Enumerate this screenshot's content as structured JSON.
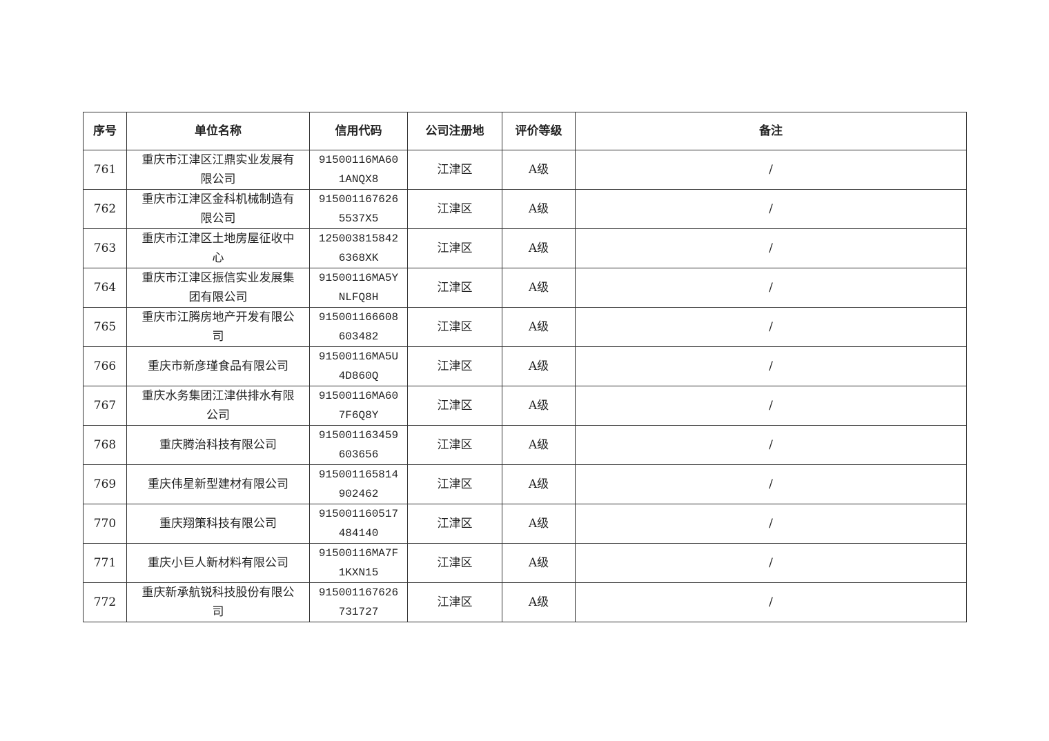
{
  "headers": [
    "序号",
    "单位名称",
    "信用代码",
    "公司注册地",
    "评价等级",
    "备注"
  ],
  "rows": [
    {
      "no": "761",
      "name": "重庆市江津区江鼎实业发展有限公司",
      "code": "91500116MA601ANQX8",
      "region": "江津区",
      "grade": "A级",
      "note": "/"
    },
    {
      "no": "762",
      "name": "重庆市江津区金科机械制造有限公司",
      "code": "9150011676265537X5",
      "region": "江津区",
      "grade": "A级",
      "note": "/"
    },
    {
      "no": "763",
      "name": "重庆市江津区土地房屋征收中心",
      "code": "1250038158426368XK",
      "region": "江津区",
      "grade": "A级",
      "note": "/"
    },
    {
      "no": "764",
      "name": "重庆市江津区振信实业发展集团有限公司",
      "code": "91500116MA5YNLFQ8H",
      "region": "江津区",
      "grade": "A级",
      "note": "/"
    },
    {
      "no": "765",
      "name": "重庆市江腾房地产开发有限公司",
      "code": "915001166608603482",
      "region": "江津区",
      "grade": "A级",
      "note": "/"
    },
    {
      "no": "766",
      "name": "重庆市新彦瑾食品有限公司",
      "code": "91500116MA5U4D860Q",
      "region": "江津区",
      "grade": "A级",
      "note": "/"
    },
    {
      "no": "767",
      "name": "重庆水务集团江津供排水有限公司",
      "code": "91500116MA607F6Q8Y",
      "region": "江津区",
      "grade": "A级",
      "note": "/"
    },
    {
      "no": "768",
      "name": "重庆腾治科技有限公司",
      "code": "915001163459603656",
      "region": "江津区",
      "grade": "A级",
      "note": "/"
    },
    {
      "no": "769",
      "name": "重庆伟星新型建材有限公司",
      "code": "915001165814902462",
      "region": "江津区",
      "grade": "A级",
      "note": "/"
    },
    {
      "no": "770",
      "name": "重庆翔策科技有限公司",
      "code": "915001160517484140",
      "region": "江津区",
      "grade": "A级",
      "note": "/"
    },
    {
      "no": "771",
      "name": "重庆小巨人新材料有限公司",
      "code": "91500116MA7F1KXN15",
      "region": "江津区",
      "grade": "A级",
      "note": "/"
    },
    {
      "no": "772",
      "name": "重庆新承航锐科技股份有限公司",
      "code": "915001167626731727",
      "region": "江津区",
      "grade": "A级",
      "note": "/"
    }
  ]
}
